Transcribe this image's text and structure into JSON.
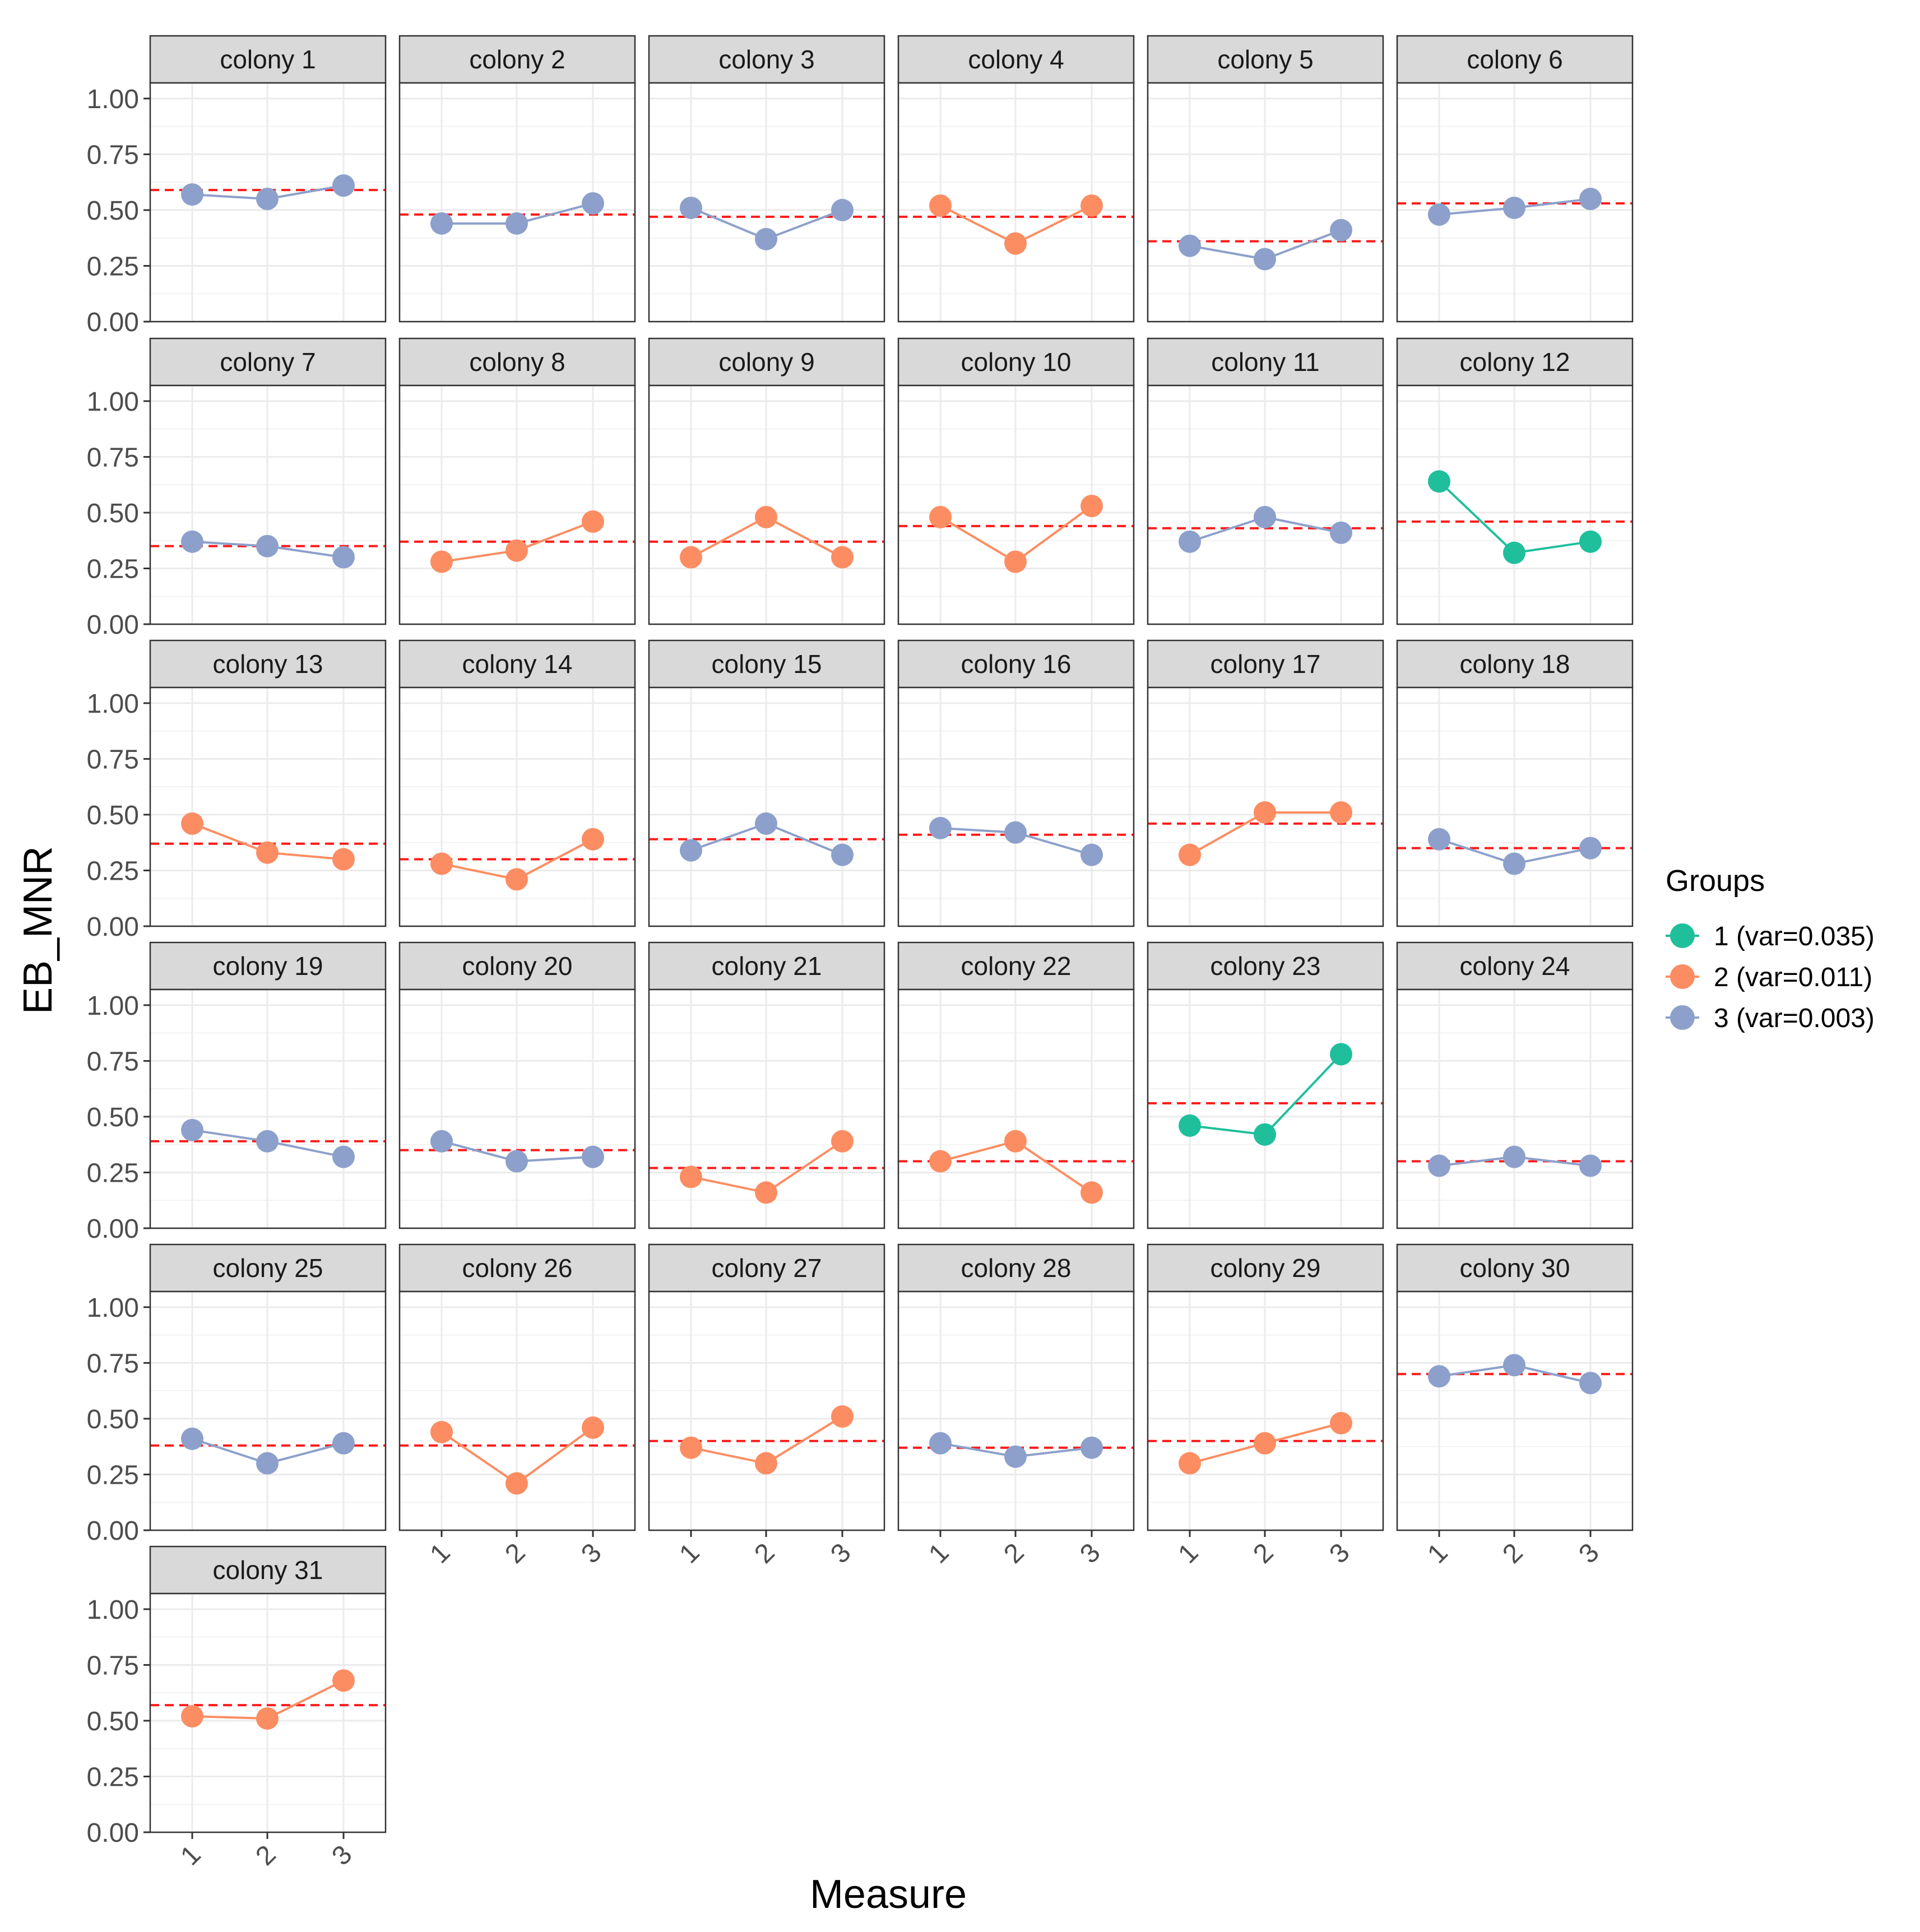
{
  "chart_data": {
    "type": "line",
    "facet_type": "facet_wrap",
    "xlabel": "Measure",
    "ylabel": "EB_MNR",
    "x_ticks": [
      "1",
      "2",
      "3"
    ],
    "y_ticks": [
      "0.00",
      "0.25",
      "0.50",
      "0.75",
      "1.00"
    ],
    "ylim": [
      0,
      1.07
    ],
    "legend": {
      "title": "Groups",
      "position": "right",
      "entries": [
        {
          "group": 1,
          "label": "1 (var=0.035)",
          "color": "#1fbf9c"
        },
        {
          "group": 2,
          "label": "2 (var=0.011)",
          "color": "#fc8d62"
        },
        {
          "group": 3,
          "label": "3 (var=0.003)",
          "color": "#8da0cb"
        }
      ]
    },
    "colors": {
      "mean_line": "#ff1a1a",
      "strip": "#d9d9d9",
      "grid": "#ebebeb",
      "panel_border": "#333333"
    },
    "panels": [
      {
        "label": "colony 1",
        "group": 3,
        "values": [
          0.57,
          0.55,
          0.61
        ],
        "mean": 0.59
      },
      {
        "label": "colony 2",
        "group": 3,
        "values": [
          0.44,
          0.44,
          0.53
        ],
        "mean": 0.48
      },
      {
        "label": "colony 3",
        "group": 3,
        "values": [
          0.51,
          0.37,
          0.5
        ],
        "mean": 0.47
      },
      {
        "label": "colony 4",
        "group": 2,
        "values": [
          0.52,
          0.35,
          0.52
        ],
        "mean": 0.47
      },
      {
        "label": "colony 5",
        "group": 3,
        "values": [
          0.34,
          0.28,
          0.41
        ],
        "mean": 0.36
      },
      {
        "label": "colony 6",
        "group": 3,
        "values": [
          0.48,
          0.51,
          0.55
        ],
        "mean": 0.53
      },
      {
        "label": "colony 7",
        "group": 3,
        "values": [
          0.37,
          0.35,
          0.3
        ],
        "mean": 0.35
      },
      {
        "label": "colony 8",
        "group": 2,
        "values": [
          0.28,
          0.33,
          0.46
        ],
        "mean": 0.37
      },
      {
        "label": "colony 9",
        "group": 2,
        "values": [
          0.3,
          0.48,
          0.3
        ],
        "mean": 0.37
      },
      {
        "label": "colony 10",
        "group": 2,
        "values": [
          0.48,
          0.28,
          0.53
        ],
        "mean": 0.44
      },
      {
        "label": "colony 11",
        "group": 3,
        "values": [
          0.37,
          0.48,
          0.41
        ],
        "mean": 0.43
      },
      {
        "label": "colony 12",
        "group": 1,
        "values": [
          0.64,
          0.32,
          0.37
        ],
        "mean": 0.46
      },
      {
        "label": "colony 13",
        "group": 2,
        "values": [
          0.46,
          0.33,
          0.3
        ],
        "mean": 0.37
      },
      {
        "label": "colony 14",
        "group": 2,
        "values": [
          0.28,
          0.21,
          0.39
        ],
        "mean": 0.3
      },
      {
        "label": "colony 15",
        "group": 3,
        "values": [
          0.34,
          0.46,
          0.32
        ],
        "mean": 0.39
      },
      {
        "label": "colony 16",
        "group": 3,
        "values": [
          0.44,
          0.42,
          0.32
        ],
        "mean": 0.41
      },
      {
        "label": "colony 17",
        "group": 2,
        "values": [
          0.32,
          0.51,
          0.51
        ],
        "mean": 0.46
      },
      {
        "label": "colony 18",
        "group": 3,
        "values": [
          0.39,
          0.28,
          0.35
        ],
        "mean": 0.35
      },
      {
        "label": "colony 19",
        "group": 3,
        "values": [
          0.44,
          0.39,
          0.32
        ],
        "mean": 0.39
      },
      {
        "label": "colony 20",
        "group": 3,
        "values": [
          0.39,
          0.3,
          0.32
        ],
        "mean": 0.35
      },
      {
        "label": "colony 21",
        "group": 2,
        "values": [
          0.23,
          0.16,
          0.39
        ],
        "mean": 0.27
      },
      {
        "label": "colony 22",
        "group": 2,
        "values": [
          0.3,
          0.39,
          0.16
        ],
        "mean": 0.3
      },
      {
        "label": "colony 23",
        "group": 1,
        "values": [
          0.46,
          0.42,
          0.78
        ],
        "mean": 0.56
      },
      {
        "label": "colony 24",
        "group": 3,
        "values": [
          0.28,
          0.32,
          0.28
        ],
        "mean": 0.3
      },
      {
        "label": "colony 25",
        "group": 3,
        "values": [
          0.41,
          0.3,
          0.39
        ],
        "mean": 0.38
      },
      {
        "label": "colony 26",
        "group": 2,
        "values": [
          0.44,
          0.21,
          0.46
        ],
        "mean": 0.38
      },
      {
        "label": "colony 27",
        "group": 2,
        "values": [
          0.37,
          0.3,
          0.51
        ],
        "mean": 0.4
      },
      {
        "label": "colony 28",
        "group": 3,
        "values": [
          0.39,
          0.33,
          0.37
        ],
        "mean": 0.37
      },
      {
        "label": "colony 29",
        "group": 2,
        "values": [
          0.3,
          0.39,
          0.48
        ],
        "mean": 0.4
      },
      {
        "label": "colony 30",
        "group": 3,
        "values": [
          0.69,
          0.74,
          0.66
        ],
        "mean": 0.7
      },
      {
        "label": "colony 31",
        "group": 2,
        "values": [
          0.52,
          0.51,
          0.68
        ],
        "mean": 0.57
      }
    ]
  }
}
